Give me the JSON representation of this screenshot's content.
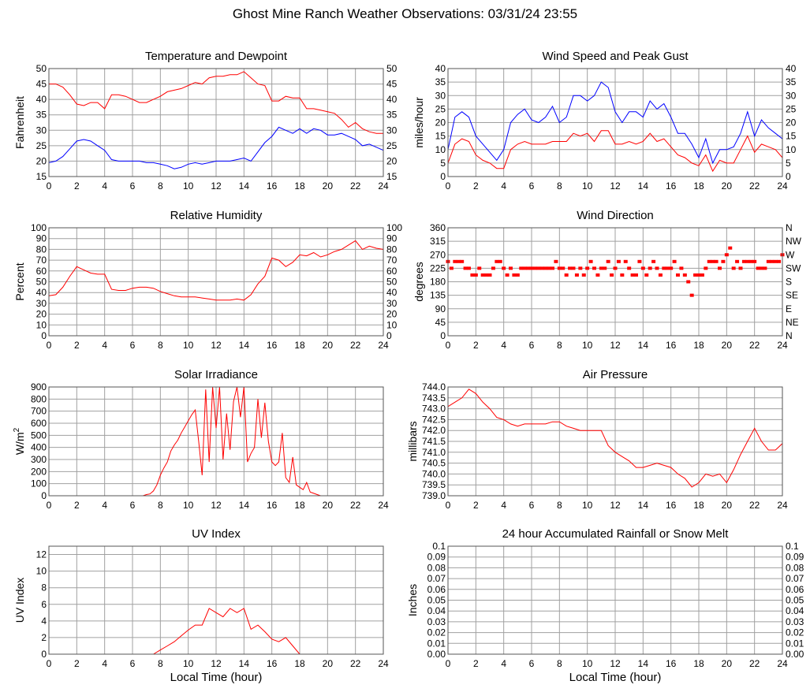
{
  "page": {
    "title": "Ghost Mine Ranch Weather Observations: 03/31/24 23:55"
  },
  "colors": {
    "red": "#ff0000",
    "blue": "#0000ff",
    "grid": "#a0a0a0"
  },
  "chart_data": [
    {
      "id": "temperature",
      "type": "line",
      "title": "Temperature and Dewpoint",
      "ylabel": "Fahrenheit",
      "xlabel": "",
      "xlim": [
        0,
        24
      ],
      "ylim": [
        15,
        50
      ],
      "grid": true,
      "xtick_labels": [
        "0",
        "2",
        "4",
        "6",
        "8",
        "10",
        "12",
        "14",
        "16",
        "18",
        "20",
        "22",
        "24"
      ],
      "ytick_values": [
        15,
        20,
        25,
        30,
        35,
        40,
        45,
        50
      ],
      "ytick_labels": [
        "15",
        "20",
        "25",
        "30",
        "35",
        "40",
        "45",
        "50"
      ],
      "ytick_labels_right": [
        "15",
        "20",
        "25",
        "30",
        "35",
        "40",
        "45",
        "50"
      ],
      "series": [
        {
          "color": "#ff0000",
          "values": [
            45,
            45,
            44,
            41.5,
            38.5,
            38,
            39,
            39,
            37,
            41.5,
            41.5,
            41,
            40,
            39,
            39,
            40,
            41,
            42.5,
            43,
            43.5,
            44.5,
            45.5,
            45,
            47,
            47.5,
            47.5,
            48,
            48,
            49,
            47,
            45,
            44.5,
            39.5,
            39.5,
            41,
            40.5,
            40.5,
            37,
            37,
            36.5,
            36,
            35.5,
            33.5,
            31,
            32.5,
            30.5,
            29.5,
            29,
            29
          ]
        },
        {
          "color": "#0000ff",
          "values": [
            19.5,
            20,
            21.5,
            24,
            26.5,
            27,
            26.5,
            25,
            23.5,
            20.5,
            20,
            20,
            20,
            20,
            19.5,
            19.5,
            19,
            18.5,
            17.5,
            18,
            19,
            19.5,
            19,
            19.5,
            20,
            20,
            20,
            20.5,
            21,
            20,
            23,
            26,
            28,
            31,
            30,
            29,
            30.5,
            29,
            30.5,
            30,
            28.5,
            28.5,
            29,
            28,
            27,
            25,
            25.5,
            24.5,
            23.5
          ]
        }
      ]
    },
    {
      "id": "wind-speed",
      "type": "line",
      "title": "Wind Speed and Peak Gust",
      "ylabel": "miles/hour",
      "xlabel": "",
      "xlim": [
        0,
        24
      ],
      "ylim": [
        0,
        40
      ],
      "grid": true,
      "xtick_labels": [
        "0",
        "2",
        "4",
        "6",
        "8",
        "10",
        "12",
        "14",
        "16",
        "18",
        "20",
        "22",
        "24"
      ],
      "ytick_values": [
        0,
        5,
        10,
        15,
        20,
        25,
        30,
        35,
        40
      ],
      "ytick_labels": [
        "0",
        "5",
        "10",
        "15",
        "20",
        "25",
        "30",
        "35",
        "40"
      ],
      "ytick_labels_right": [
        "0",
        "5",
        "10",
        "15",
        "20",
        "25",
        "30",
        "35",
        "40"
      ],
      "series": [
        {
          "color": "#0000ff",
          "values": [
            10,
            22,
            24,
            22,
            15,
            12,
            9,
            6,
            10,
            20,
            23,
            25,
            21,
            20,
            22,
            26,
            20,
            22,
            30,
            30,
            28,
            30,
            35,
            33,
            24,
            20,
            24,
            24,
            22,
            28,
            25,
            27,
            22,
            16,
            16,
            12,
            7,
            14,
            5,
            10,
            10,
            11,
            16,
            24,
            15,
            21,
            18,
            16,
            14
          ]
        },
        {
          "color": "#ff0000",
          "values": [
            5,
            12,
            14,
            13,
            8,
            6,
            5,
            3,
            3,
            10,
            12,
            13,
            12,
            12,
            12,
            13,
            13,
            13,
            16,
            15,
            16,
            13,
            17,
            17,
            12,
            12,
            13,
            12,
            13,
            16,
            13,
            14,
            11,
            8,
            7,
            5,
            4,
            8,
            2,
            6,
            5,
            5,
            10,
            15,
            9,
            12,
            11,
            10,
            7
          ]
        }
      ]
    },
    {
      "id": "humidity",
      "type": "line",
      "title": "Relative Humidity",
      "ylabel": "Percent",
      "xlabel": "",
      "xlim": [
        0,
        24
      ],
      "ylim": [
        0,
        100
      ],
      "grid": true,
      "xtick_labels": [
        "0",
        "2",
        "4",
        "6",
        "8",
        "10",
        "12",
        "14",
        "16",
        "18",
        "20",
        "22",
        "24"
      ],
      "ytick_values": [
        0,
        10,
        20,
        30,
        40,
        50,
        60,
        70,
        80,
        90,
        100
      ],
      "ytick_labels": [
        "0",
        "10",
        "20",
        "30",
        "40",
        "50",
        "60",
        "70",
        "80",
        "90",
        "100"
      ],
      "ytick_labels_right": [
        "0",
        "10",
        "20",
        "30",
        "40",
        "50",
        "60",
        "70",
        "80",
        "90",
        "100"
      ],
      "series": [
        {
          "color": "#ff0000",
          "values": [
            37,
            38,
            45,
            55,
            64,
            61,
            58,
            57,
            57,
            43,
            42,
            42,
            44,
            45,
            45,
            44,
            41,
            39,
            37,
            36,
            36,
            36,
            35,
            34,
            33,
            33,
            33,
            34,
            33,
            38,
            48,
            55,
            72,
            70,
            64,
            68,
            75,
            74,
            77,
            73,
            75,
            78,
            80,
            84,
            88,
            80,
            83,
            81,
            80
          ]
        }
      ]
    },
    {
      "id": "wind-direction",
      "type": "scatter",
      "title": "Wind Direction",
      "ylabel": "degrees",
      "xlabel": "",
      "xlim": [
        0,
        24
      ],
      "ylim": [
        0,
        360
      ],
      "grid": true,
      "xtick_labels": [
        "0",
        "2",
        "4",
        "6",
        "8",
        "10",
        "12",
        "14",
        "16",
        "18",
        "20",
        "22",
        "24"
      ],
      "ytick_values": [
        0,
        45,
        90,
        135,
        180,
        225,
        270,
        315,
        360
      ],
      "ytick_labels": [
        "0",
        "45",
        "90",
        "135",
        "180",
        "225",
        "270",
        "315",
        "360"
      ],
      "ytick_labels_right": [
        "N",
        "NE",
        "E",
        "SE",
        "S",
        "SW",
        "W",
        "NW",
        "N"
      ],
      "series": [
        {
          "color": "#ff0000",
          "values": [
            247.5,
            225,
            247.5,
            247.5,
            247.5,
            225,
            225,
            202.5,
            202.5,
            225,
            202.5,
            202.5,
            202.5,
            225,
            247.5,
            247.5,
            225,
            202.5,
            225,
            202.5,
            202.5,
            225,
            225,
            225,
            225,
            225,
            225,
            225,
            225,
            225,
            225,
            247.5,
            225,
            225,
            202.5,
            225,
            225,
            202.5,
            225,
            202.5,
            225,
            247.5,
            225,
            202.5,
            225,
            225,
            247.5,
            202.5,
            225,
            247.5,
            202.5,
            247.5,
            225,
            202.5,
            202.5,
            247.5,
            225,
            202.5,
            225,
            247.5,
            225,
            202.5,
            225,
            225,
            225,
            247.5,
            202.5,
            225,
            202.5,
            180,
            135,
            202.5,
            202.5,
            202.5,
            225,
            247.5,
            247.5,
            247.5,
            225,
            247.5,
            270,
            292.5,
            225,
            247.5,
            225,
            247.5,
            247.5,
            247.5,
            247.5,
            225,
            225,
            225,
            247.5,
            247.5,
            247.5,
            247.5,
            270
          ]
        }
      ]
    },
    {
      "id": "solar",
      "type": "line",
      "title": "Solar Irradiance",
      "ylabel": "W/m",
      "ylabel_sup": "2",
      "xlabel": "",
      "xlim": [
        0,
        24
      ],
      "ylim": [
        0,
        900
      ],
      "grid": true,
      "xtick_labels": [
        "0",
        "2",
        "4",
        "6",
        "8",
        "10",
        "12",
        "14",
        "16",
        "18",
        "20",
        "22",
        "24"
      ],
      "ytick_values": [
        0,
        100,
        200,
        300,
        400,
        500,
        600,
        700,
        800,
        900
      ],
      "ytick_labels": [
        "0",
        "100",
        "200",
        "300",
        "400",
        "500",
        "600",
        "700",
        "800",
        "900"
      ],
      "series": [
        {
          "color": "#ff0000",
          "values": [
            0,
            0,
            0,
            0,
            0,
            0,
            0,
            0,
            0,
            0,
            0,
            0,
            0,
            0,
            0,
            0,
            0,
            0,
            0,
            0,
            0,
            0,
            0,
            0,
            0,
            0,
            0,
            0,
            10,
            15,
            40,
            90,
            170,
            230,
            280,
            370,
            420,
            460,
            520,
            570,
            620,
            670,
            710,
            450,
            170,
            880,
            280,
            900,
            560,
            900,
            300,
            680,
            380,
            780,
            900,
            650,
            900,
            280,
            350,
            400,
            800,
            480,
            770,
            450,
            280,
            250,
            280,
            520,
            150,
            110,
            320,
            90,
            70,
            50,
            110,
            30,
            20,
            10,
            0,
            0,
            0,
            0,
            0,
            0,
            0,
            0,
            0,
            0,
            0,
            0,
            0,
            0,
            0,
            0,
            0,
            0,
            0
          ]
        }
      ]
    },
    {
      "id": "pressure",
      "type": "line",
      "title": "Air Pressure",
      "ylabel": "millibars",
      "xlabel": "",
      "xlim": [
        0,
        24
      ],
      "ylim": [
        739,
        744
      ],
      "grid": true,
      "xtick_labels": [
        "0",
        "2",
        "4",
        "6",
        "8",
        "10",
        "12",
        "14",
        "16",
        "18",
        "20",
        "22",
        "24"
      ],
      "ytick_values": [
        739,
        739.5,
        740,
        740.5,
        741,
        741.5,
        742,
        742.5,
        743,
        743.5,
        744
      ],
      "ytick_labels": [
        "739.0",
        "739.5",
        "740.0",
        "740.5",
        "741.0",
        "741.5",
        "742.0",
        "742.5",
        "743.0",
        "743.5",
        "744.0"
      ],
      "series": [
        {
          "color": "#ff0000",
          "values": [
            743.1,
            743.3,
            743.5,
            743.9,
            743.7,
            743.3,
            743.0,
            742.6,
            742.5,
            742.3,
            742.2,
            742.3,
            742.3,
            742.3,
            742.3,
            742.4,
            742.4,
            742.2,
            742.1,
            742.0,
            742.0,
            742.0,
            742.0,
            741.3,
            741.0,
            740.8,
            740.6,
            740.3,
            740.3,
            740.4,
            740.5,
            740.4,
            740.3,
            740.0,
            739.8,
            739.4,
            739.6,
            740.0,
            739.9,
            740.0,
            739.6,
            740.2,
            740.9,
            741.5,
            742.1,
            741.5,
            741.1,
            741.1,
            741.4
          ]
        }
      ]
    },
    {
      "id": "uv",
      "type": "line",
      "title": "UV Index",
      "ylabel": "UV Index",
      "xlabel": "Local Time (hour)",
      "xlim": [
        0,
        24
      ],
      "ylim": [
        0,
        13
      ],
      "grid": true,
      "xtick_labels": [
        "0",
        "2",
        "4",
        "6",
        "8",
        "10",
        "12",
        "14",
        "16",
        "18",
        "20",
        "22",
        "24"
      ],
      "ytick_values": [
        0,
        2,
        4,
        6,
        8,
        10,
        12
      ],
      "ytick_labels": [
        "0",
        "2",
        "4",
        "6",
        "8",
        "10",
        "12"
      ],
      "series": [
        {
          "color": "#ff0000",
          "values": [
            0,
            0,
            0,
            0,
            0,
            0,
            0,
            0,
            0,
            0,
            0,
            0,
            0,
            0,
            0,
            0,
            0.5,
            1,
            1.5,
            2.2,
            2.9,
            3.5,
            3.5,
            5.5,
            5,
            4.5,
            5.5,
            5,
            5.5,
            3,
            3.5,
            2.7,
            1.8,
            1.5,
            2,
            1,
            0,
            0,
            0,
            0,
            0,
            0,
            0,
            0,
            0,
            0,
            0,
            0,
            0
          ]
        }
      ]
    },
    {
      "id": "rain",
      "type": "line",
      "title": "24 hour Accumulated Rainfall or Snow Melt",
      "ylabel": "Inches",
      "xlabel": "Local Time (hour)",
      "xlim": [
        0,
        24
      ],
      "ylim": [
        0,
        0.1
      ],
      "grid": true,
      "xtick_labels": [
        "0",
        "2",
        "4",
        "6",
        "8",
        "10",
        "12",
        "14",
        "16",
        "18",
        "20",
        "22",
        "24"
      ],
      "ytick_values": [
        0,
        0.01,
        0.02,
        0.03,
        0.04,
        0.05,
        0.06,
        0.07,
        0.08,
        0.09,
        0.1
      ],
      "ytick_labels": [
        "0.00",
        "0.01",
        "0.02",
        "0.03",
        "0.04",
        "0.05",
        "0.06",
        "0.07",
        "0.08",
        "0.09",
        "0.1"
      ],
      "ytick_labels_right": [
        "0.00",
        "0.01",
        "0.02",
        "0.03",
        "0.04",
        "0.05",
        "0.06",
        "0.07",
        "0.08",
        "0.09",
        "0.1"
      ],
      "series": [
        {
          "color": "#ff0000",
          "values": [
            0,
            0,
            0,
            0,
            0,
            0,
            0,
            0,
            0,
            0,
            0,
            0,
            0,
            0,
            0,
            0,
            0,
            0,
            0,
            0,
            0,
            0,
            0,
            0,
            0,
            0,
            0,
            0,
            0,
            0,
            0,
            0,
            0,
            0,
            0,
            0,
            0,
            0,
            0,
            0,
            0,
            0,
            0,
            0,
            0,
            0,
            0,
            0,
            0
          ]
        }
      ]
    }
  ]
}
